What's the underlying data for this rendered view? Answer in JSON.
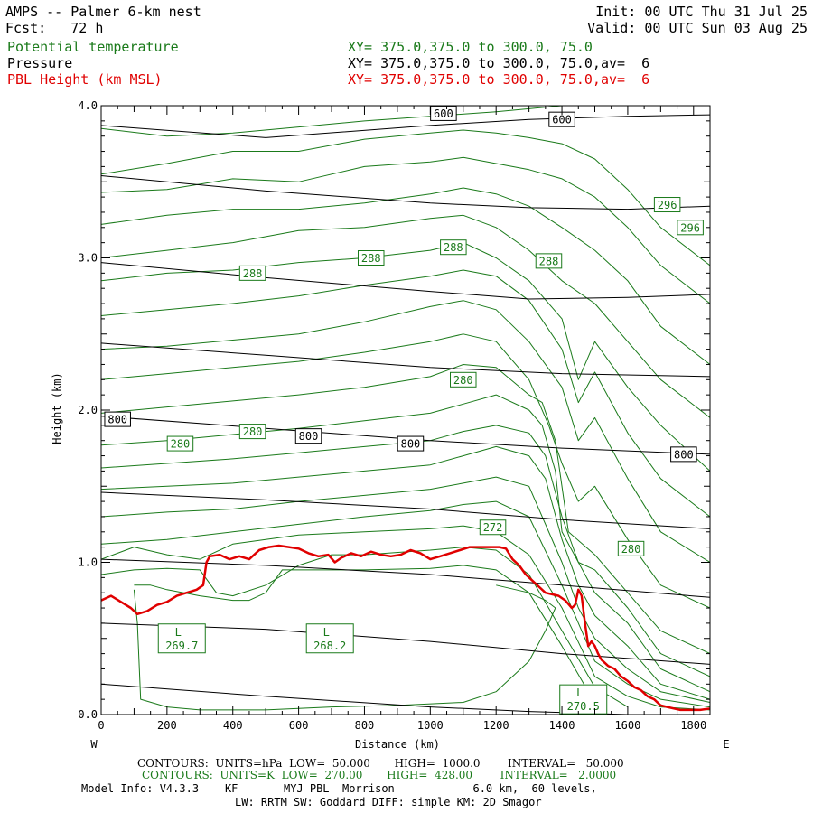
{
  "header": {
    "title": "AMPS -- Palmer 6-km nest",
    "init": "Init: 00 UTC Thu 31 Jul 25",
    "fcst": "Fcst:   72 h",
    "valid": "Valid: 00 UTC Sun 03 Aug 25",
    "fields": [
      {
        "name": "Potential temperature",
        "xy": "XY= 375.0,375.0 to 300.0, 75.0",
        "color": "#1a7a1a"
      },
      {
        "name": "Pressure",
        "xy": "XY= 375.0,375.0 to 300.0, 75.0,av=  6",
        "color": "#000000"
      },
      {
        "name": "PBL Height (km MSL)",
        "xy": "XY= 375.0,375.0 to 300.0, 75.0,av=  6",
        "color": "#e00000"
      }
    ]
  },
  "chart_data": {
    "type": "line",
    "xlabel": "Distance (km)",
    "ylabel": "Height (km)",
    "xlim": [
      0,
      1850
    ],
    "ylim": [
      0,
      4
    ],
    "xticks": [
      "0",
      "200",
      "400",
      "600",
      "800",
      "1000",
      "1200",
      "1400",
      "1600",
      "1800"
    ],
    "yticks": [
      "0.0",
      "1.0",
      "2.0",
      "3.0",
      "4.0"
    ],
    "left_label": "W",
    "right_label": "E",
    "pressure_lines": [
      {
        "x": [
          0,
          500,
          1000,
          1300,
          1600,
          1850
        ],
        "y": [
          0.2,
          0.12,
          0.05,
          0.02,
          0.0,
          0.0
        ]
      },
      {
        "x": [
          0,
          500,
          1000,
          1400,
          1850
        ],
        "y": [
          0.6,
          0.56,
          0.48,
          0.4,
          0.33
        ]
      },
      {
        "x": [
          0,
          500,
          1000,
          1400,
          1850
        ],
        "y": [
          1.02,
          0.98,
          0.92,
          0.85,
          0.77
        ]
      },
      {
        "x": [
          0,
          500,
          1000,
          1400,
          1850
        ],
        "y": [
          1.46,
          1.41,
          1.35,
          1.28,
          1.22
        ]
      },
      {
        "x": [
          0,
          500,
          1000,
          1400,
          1850
        ],
        "y": [
          1.96,
          1.88,
          1.8,
          1.75,
          1.71
        ]
      },
      {
        "x": [
          0,
          500,
          1000,
          1400,
          1850
        ],
        "y": [
          2.44,
          2.36,
          2.28,
          2.24,
          2.22
        ]
      },
      {
        "x": [
          0,
          500,
          1000,
          1300,
          1600,
          1850
        ],
        "y": [
          2.97,
          2.87,
          2.78,
          2.73,
          2.74,
          2.76
        ]
      },
      {
        "x": [
          0,
          500,
          1000,
          1300,
          1600,
          1850
        ],
        "y": [
          3.54,
          3.44,
          3.36,
          3.33,
          3.32,
          3.34
        ]
      },
      {
        "x": [
          0,
          500,
          1000,
          1300,
          1600,
          1850
        ],
        "y": [
          3.87,
          3.79,
          3.87,
          3.91,
          3.93,
          3.94
        ]
      }
    ],
    "pressure_labels": [
      {
        "text": "600",
        "x": 1040,
        "y": 3.95
      },
      {
        "text": "600",
        "x": 1400,
        "y": 3.91
      },
      {
        "text": "800",
        "x": 50,
        "y": 1.94
      },
      {
        "text": "800",
        "x": 630,
        "y": 1.83
      },
      {
        "text": "800",
        "x": 940,
        "y": 1.78
      },
      {
        "text": "800",
        "x": 1770,
        "y": 1.71
      }
    ],
    "theta_lines": [
      {
        "x": [
          0,
          200,
          400,
          600,
          800,
          1000,
          1200,
          1300,
          1400,
          1500,
          1600,
          1700,
          1850
        ],
        "y": [
          3.85,
          3.8,
          3.82,
          3.86,
          3.9,
          3.93,
          3.96,
          3.98,
          4.0,
          4.0,
          4.0,
          4.0,
          4.0
        ]
      },
      {
        "x": [
          0,
          200,
          400,
          600,
          800,
          1000,
          1100,
          1200,
          1300,
          1400,
          1500,
          1600,
          1700,
          1850
        ],
        "y": [
          3.55,
          3.62,
          3.7,
          3.7,
          3.78,
          3.82,
          3.84,
          3.82,
          3.79,
          3.75,
          3.65,
          3.45,
          3.2,
          2.95
        ]
      },
      {
        "x": [
          0,
          200,
          400,
          600,
          800,
          1000,
          1100,
          1200,
          1300,
          1400,
          1500,
          1600,
          1700,
          1850
        ],
        "y": [
          3.43,
          3.45,
          3.52,
          3.5,
          3.6,
          3.63,
          3.66,
          3.62,
          3.58,
          3.52,
          3.4,
          3.2,
          2.95,
          2.7
        ]
      },
      {
        "x": [
          0,
          200,
          400,
          600,
          800,
          1000,
          1100,
          1200,
          1300,
          1400,
          1500,
          1600,
          1700,
          1850
        ],
        "y": [
          3.22,
          3.28,
          3.32,
          3.32,
          3.36,
          3.42,
          3.46,
          3.42,
          3.34,
          3.2,
          3.05,
          2.85,
          2.55,
          2.3
        ]
      },
      {
        "x": [
          0,
          200,
          400,
          600,
          800,
          1000,
          1100,
          1200,
          1300,
          1400,
          1500,
          1600,
          1700,
          1850
        ],
        "y": [
          3.0,
          3.05,
          3.1,
          3.18,
          3.2,
          3.26,
          3.28,
          3.2,
          3.05,
          2.85,
          2.7,
          2.45,
          2.2,
          1.95
        ]
      },
      {
        "x": [
          0,
          200,
          400,
          600,
          800,
          1000,
          1100,
          1200,
          1300,
          1400,
          1450,
          1500,
          1600,
          1700,
          1850
        ],
        "y": [
          2.85,
          2.9,
          2.92,
          2.97,
          3.0,
          3.05,
          3.1,
          3.0,
          2.85,
          2.6,
          2.2,
          2.45,
          2.15,
          1.9,
          1.6
        ]
      },
      {
        "x": [
          0,
          200,
          400,
          600,
          800,
          1000,
          1100,
          1200,
          1300,
          1400,
          1450,
          1500,
          1600,
          1700,
          1850
        ],
        "y": [
          2.62,
          2.66,
          2.7,
          2.75,
          2.82,
          2.88,
          2.92,
          2.88,
          2.72,
          2.4,
          2.05,
          2.25,
          1.85,
          1.55,
          1.3
        ]
      },
      {
        "x": [
          0,
          200,
          400,
          600,
          800,
          1000,
          1100,
          1200,
          1300,
          1400,
          1450,
          1500,
          1600,
          1700,
          1850
        ],
        "y": [
          2.4,
          2.42,
          2.46,
          2.5,
          2.58,
          2.68,
          2.72,
          2.66,
          2.45,
          2.15,
          1.8,
          1.95,
          1.55,
          1.2,
          1.0
        ]
      },
      {
        "x": [
          0,
          200,
          400,
          600,
          800,
          1000,
          1100,
          1200,
          1300,
          1360,
          1400,
          1450,
          1500,
          1600,
          1700,
          1850
        ],
        "y": [
          2.2,
          2.24,
          2.28,
          2.32,
          2.38,
          2.45,
          2.5,
          2.45,
          2.2,
          1.9,
          1.65,
          1.4,
          1.5,
          1.15,
          0.85,
          0.7
        ]
      },
      {
        "x": [
          0,
          200,
          400,
          600,
          800,
          1000,
          1100,
          1200,
          1300,
          1340,
          1380,
          1420,
          1500,
          1600,
          1700,
          1850
        ],
        "y": [
          1.98,
          2.02,
          2.06,
          2.1,
          2.15,
          2.22,
          2.3,
          2.28,
          2.1,
          2.05,
          1.8,
          1.2,
          1.05,
          0.8,
          0.55,
          0.4
        ]
      },
      {
        "x": [
          0,
          200,
          400,
          600,
          800,
          1000,
          1100,
          1200,
          1300,
          1340,
          1380,
          1400,
          1450,
          1500,
          1600,
          1700,
          1850
        ],
        "y": [
          1.77,
          1.8,
          1.84,
          1.88,
          1.93,
          1.98,
          2.04,
          2.1,
          2.0,
          1.9,
          1.6,
          1.2,
          1.0,
          0.95,
          0.7,
          0.4,
          0.25
        ]
      },
      {
        "x": [
          0,
          200,
          400,
          600,
          800,
          1000,
          1100,
          1200,
          1300,
          1350,
          1400,
          1450,
          1500,
          1600,
          1700,
          1850
        ],
        "y": [
          1.62,
          1.65,
          1.68,
          1.72,
          1.76,
          1.8,
          1.86,
          1.9,
          1.85,
          1.7,
          1.3,
          1.0,
          0.8,
          0.6,
          0.3,
          0.15
        ]
      },
      {
        "x": [
          0,
          200,
          400,
          600,
          800,
          1000,
          1100,
          1200,
          1300,
          1350,
          1400,
          1450,
          1500,
          1600,
          1700,
          1850
        ],
        "y": [
          1.48,
          1.5,
          1.52,
          1.56,
          1.6,
          1.64,
          1.7,
          1.76,
          1.7,
          1.55,
          1.15,
          0.85,
          0.65,
          0.45,
          0.2,
          0.1
        ]
      },
      {
        "x": [
          0,
          200,
          400,
          600,
          800,
          1000,
          1100,
          1200,
          1300,
          1400,
          1450,
          1500,
          1600,
          1700,
          1850
        ],
        "y": [
          1.3,
          1.33,
          1.35,
          1.4,
          1.44,
          1.48,
          1.52,
          1.56,
          1.5,
          1.0,
          0.7,
          0.5,
          0.3,
          0.15,
          0.08
        ]
      },
      {
        "x": [
          0,
          200,
          400,
          600,
          800,
          1000,
          1100,
          1200,
          1300,
          1400,
          1500,
          1600,
          1700,
          1850
        ],
        "y": [
          1.12,
          1.15,
          1.2,
          1.25,
          1.3,
          1.34,
          1.38,
          1.4,
          1.3,
          0.85,
          0.35,
          0.2,
          0.1,
          0.05
        ]
      },
      {
        "x": [
          0,
          100,
          200,
          300,
          400,
          500,
          600,
          800,
          1000,
          1100,
          1200,
          1300,
          1400,
          1500,
          1600,
          1700,
          1850
        ],
        "y": [
          1.02,
          1.1,
          1.05,
          1.02,
          1.12,
          1.15,
          1.18,
          1.2,
          1.22,
          1.24,
          1.2,
          1.05,
          0.7,
          0.25,
          0.12,
          0.05,
          0.03
        ]
      },
      {
        "x": [
          0,
          100,
          200,
          300,
          350,
          400,
          500,
          600,
          700,
          800,
          1000,
          1100,
          1200,
          1300,
          1400,
          1500,
          1600
        ],
        "y": [
          0.92,
          0.95,
          0.96,
          0.95,
          0.8,
          0.78,
          0.85,
          0.98,
          1.05,
          1.05,
          1.08,
          1.1,
          1.08,
          0.92,
          0.55,
          0.18,
          0.05
        ]
      },
      {
        "x": [
          100,
          150,
          200,
          300,
          400,
          450,
          500,
          550,
          650,
          800,
          1000,
          1100,
          1200,
          1300,
          1400,
          1480,
          1500
        ],
        "y": [
          0.85,
          0.85,
          0.82,
          0.78,
          0.75,
          0.75,
          0.8,
          0.95,
          0.95,
          0.95,
          0.96,
          0.98,
          0.95,
          0.8,
          0.45,
          0.15,
          0.02
        ]
      },
      {
        "x": [
          100,
          110,
          120,
          200,
          300,
          500,
          700,
          900,
          1100,
          1200,
          1300,
          1350,
          1380,
          1350,
          1300,
          1200
        ],
        "y": [
          0.82,
          0.6,
          0.1,
          0.05,
          0.03,
          0.03,
          0.05,
          0.06,
          0.08,
          0.15,
          0.35,
          0.55,
          0.7,
          0.75,
          0.8,
          0.85
        ]
      }
    ],
    "theta_labels": [
      {
        "text": "296",
        "x": 1720,
        "y": 3.35
      },
      {
        "text": "296",
        "x": 1790,
        "y": 3.2
      },
      {
        "text": "288",
        "x": 460,
        "y": 2.9
      },
      {
        "text": "288",
        "x": 820,
        "y": 3.0
      },
      {
        "text": "288",
        "x": 1070,
        "y": 3.07
      },
      {
        "text": "288",
        "x": 1360,
        "y": 2.98
      },
      {
        "text": "280",
        "x": 1100,
        "y": 2.2
      },
      {
        "text": "280",
        "x": 240,
        "y": 1.78
      },
      {
        "text": "280",
        "x": 460,
        "y": 1.86
      },
      {
        "text": "280",
        "x": 1610,
        "y": 1.09
      },
      {
        "text": "272",
        "x": 1190,
        "y": 1.23
      }
    ],
    "lows": [
      {
        "letter": "L",
        "value": "269.7",
        "x": 245,
        "y": 0.5
      },
      {
        "letter": "L",
        "value": "268.2",
        "x": 695,
        "y": 0.5
      },
      {
        "letter": "L",
        "value": "270.5",
        "x": 1465,
        "y": 0.1
      }
    ],
    "pbl_height": {
      "x": [
        0,
        30,
        60,
        90,
        110,
        140,
        170,
        200,
        230,
        260,
        290,
        310,
        320,
        330,
        360,
        390,
        420,
        450,
        480,
        510,
        540,
        570,
        600,
        630,
        660,
        690,
        710,
        730,
        760,
        790,
        820,
        850,
        880,
        910,
        940,
        970,
        1000,
        1030,
        1060,
        1090,
        1120,
        1150,
        1180,
        1210,
        1230,
        1250,
        1270,
        1290,
        1310,
        1330,
        1350,
        1370,
        1390,
        1410,
        1430,
        1440,
        1450,
        1460,
        1470,
        1480,
        1490,
        1500,
        1510,
        1520,
        1540,
        1560,
        1580,
        1600,
        1620,
        1640,
        1660,
        1680,
        1700,
        1720,
        1740,
        1760,
        1780,
        1800,
        1820,
        1850
      ],
      "y": [
        0.75,
        0.78,
        0.74,
        0.7,
        0.66,
        0.68,
        0.72,
        0.74,
        0.78,
        0.8,
        0.82,
        0.85,
        1.0,
        1.04,
        1.05,
        1.02,
        1.04,
        1.02,
        1.08,
        1.1,
        1.11,
        1.1,
        1.09,
        1.06,
        1.04,
        1.05,
        1.0,
        1.03,
        1.06,
        1.04,
        1.07,
        1.05,
        1.04,
        1.05,
        1.08,
        1.06,
        1.02,
        1.04,
        1.06,
        1.08,
        1.1,
        1.1,
        1.1,
        1.1,
        1.09,
        1.02,
        0.98,
        0.92,
        0.88,
        0.84,
        0.8,
        0.79,
        0.78,
        0.75,
        0.7,
        0.72,
        0.82,
        0.78,
        0.6,
        0.45,
        0.48,
        0.45,
        0.4,
        0.36,
        0.32,
        0.3,
        0.25,
        0.22,
        0.18,
        0.16,
        0.12,
        0.1,
        0.06,
        0.05,
        0.04,
        0.03,
        0.03,
        0.03,
        0.03,
        0.04
      ]
    }
  },
  "footer": {
    "line1": "CONTOURS:  UNITS=hPa  LOW=  50.000       HIGH=  1000.0        INTERVAL=   50.000",
    "line2": "CONTOURS:  UNITS=K  LOW=  270.00       HIGH=  428.00        INTERVAL=   2.0000",
    "line3": "Model Info: V4.3.3    KF       MYJ PBL  Morrison            6.0 km,  60 levels,",
    "line4": "LW: RRTM SW: Goddard DIFF: simple KM: 2D Smagor"
  }
}
